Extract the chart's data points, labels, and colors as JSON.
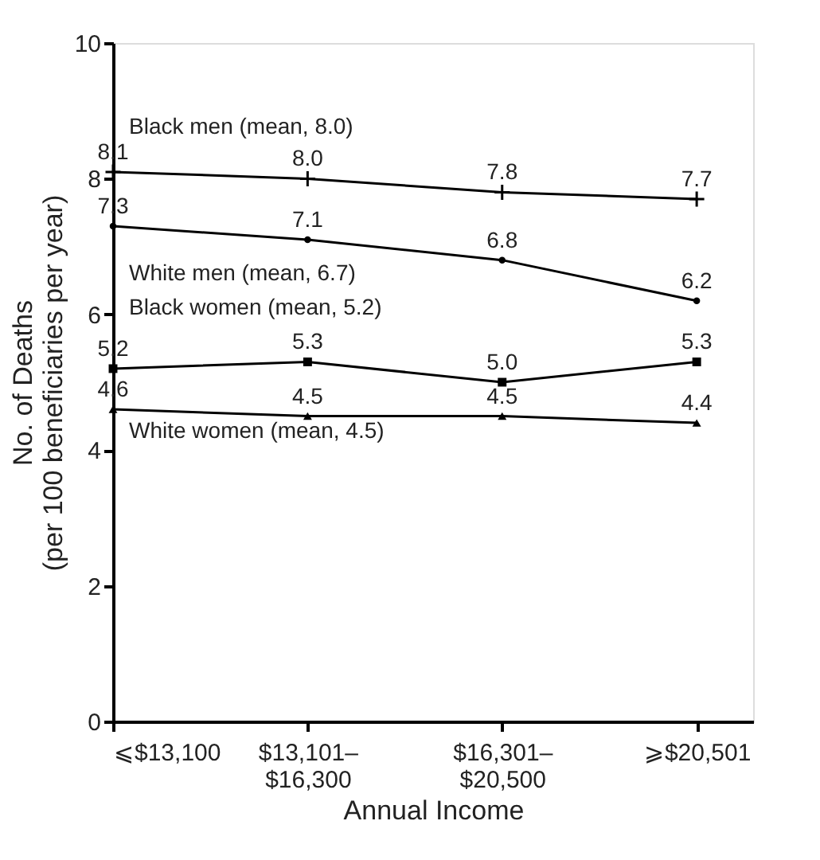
{
  "chart_data": {
    "type": "line",
    "xlabel": "Annual Income",
    "ylabel": "No. of Deaths\n(per 100 beneficiaries per year)",
    "categories": [
      "⩽$13,100",
      "$13,101–\n$16,300",
      "$16,301–\n$20,500",
      "⩾$20,501"
    ],
    "series": [
      {
        "name": "Black men (mean, 8.0)",
        "color": "#000000",
        "marker": "cross",
        "values": [
          8.1,
          8.0,
          7.8,
          7.7
        ],
        "value_labels": [
          "8.1",
          "8.0",
          "7.8",
          "7.7"
        ]
      },
      {
        "name": "White men (mean, 6.7)",
        "color": "#000000",
        "marker": "circle",
        "values": [
          7.3,
          7.1,
          6.8,
          6.2
        ],
        "value_labels": [
          "7.3",
          "7.1",
          "6.8",
          "6.2"
        ]
      },
      {
        "name": "Black women (mean, 5.2)",
        "color": "#000000",
        "marker": "square",
        "values": [
          5.2,
          5.3,
          5.0,
          5.3
        ],
        "value_labels": [
          "5.2",
          "5.3",
          "5.0",
          "5.3"
        ]
      },
      {
        "name": "White women (mean, 4.5)",
        "color": "#000000",
        "marker": "triangle",
        "values": [
          4.6,
          4.5,
          4.5,
          4.4
        ],
        "value_labels": [
          "4.6",
          "4.5",
          "4.5",
          "4.4"
        ]
      }
    ],
    "ylim": [
      0,
      10
    ],
    "yticks": [
      0,
      2,
      4,
      6,
      8,
      10
    ],
    "line_style": "solid"
  }
}
